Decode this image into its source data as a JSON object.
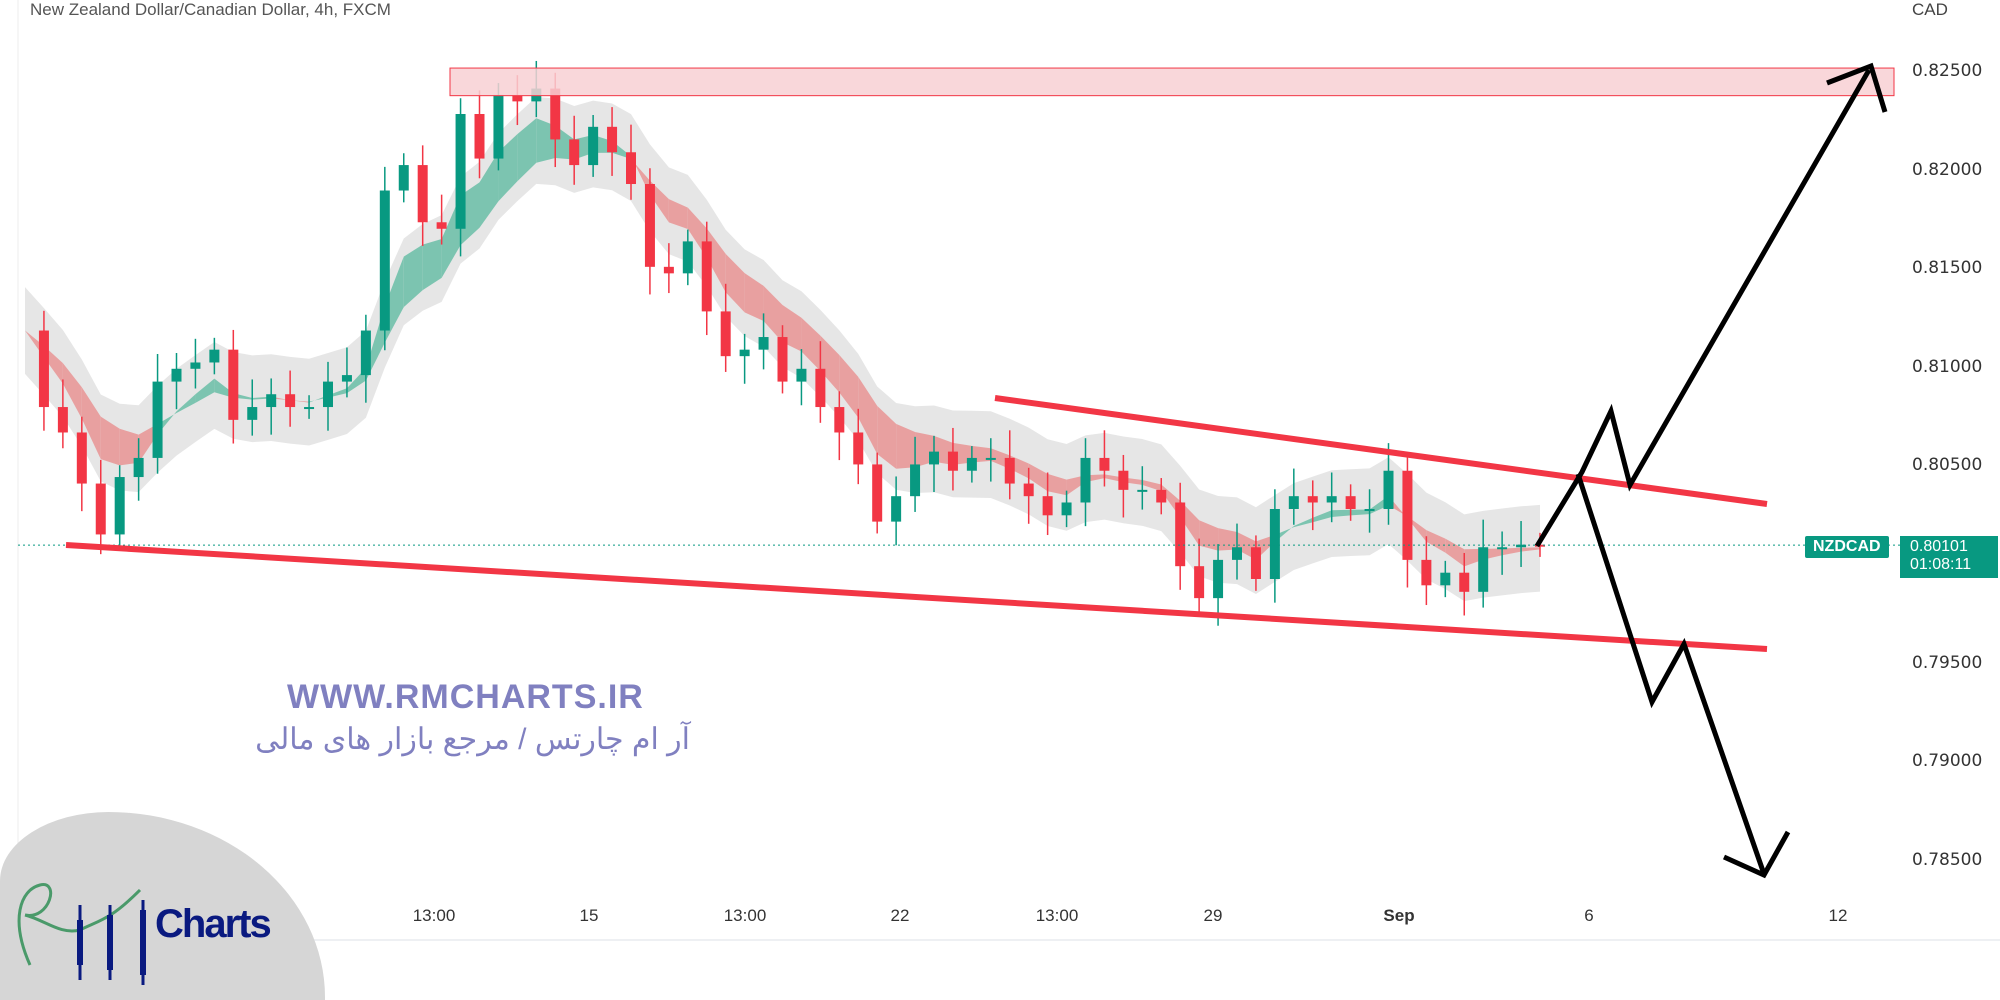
{
  "header": {
    "title": "New Zealand Dollar/Canadian Dollar, 4h, FXCM",
    "currency": "CAD"
  },
  "price_tag": {
    "symbol": "NZDCAD",
    "last": "0.80101",
    "countdown": "01:08:11"
  },
  "watermark": {
    "site": "WWW.RMCHARTS.IR",
    "tagline": "آر ام چارتس / مرجع بازار های مالی",
    "logo_text": "Charts"
  },
  "colors": {
    "up": "#089981",
    "down": "#f23645",
    "zone": "#f8d0d4",
    "channel": "#f23645",
    "projection": "#000000"
  },
  "chart_data": {
    "type": "candlestick",
    "ylim": [
      0.7825,
      0.8265
    ],
    "yticks": [
      "0.82500",
      "0.82000",
      "0.81500",
      "0.81000",
      "0.80500",
      "0.80000",
      "0.79500",
      "0.79000",
      "0.78500"
    ],
    "yticks_shown": [
      "0.82500",
      "0.82000",
      "0.81500",
      "0.81000",
      "0.80500",
      "0.79500",
      "0.79000",
      "0.78500"
    ],
    "xticks": [
      "13:00",
      "15",
      "13:00",
      "22",
      "13:00",
      "29",
      "Sep",
      "6",
      "12"
    ],
    "closes": [
      0.81189,
      0.80801,
      0.80672,
      0.80413,
      0.80155,
      0.80446,
      0.80543,
      0.8093,
      0.80995,
      0.81027,
      0.81092,
      0.80736,
      0.80801,
      0.80866,
      0.80801,
      0.80801,
      0.8093,
      0.80963,
      0.81189,
      0.81899,
      0.82028,
      0.81738,
      0.81705,
      0.82287,
      0.82061,
      0.82384,
      0.82351,
      0.82416,
      0.82158,
      0.82028,
      0.82222,
      0.82093,
      0.81932,
      0.81512,
      0.81479,
      0.81641,
      0.81286,
      0.81059,
      0.81092,
      0.81156,
      0.8093,
      0.80995,
      0.80801,
      0.80672,
      0.8051,
      0.8022,
      0.80349,
      0.8051,
      0.80575,
      0.80478,
      0.80543,
      0.80543,
      0.80413,
      0.80349,
      0.80252,
      0.80317,
      0.80543,
      0.80478,
      0.80381,
      0.80381,
      0.80317,
      0.79994,
      0.79832,
      0.80026,
      0.8009,
      0.79929,
      0.80284,
      0.80349,
      0.80317,
      0.80349,
      0.80284,
      0.80284,
      0.80478,
      0.80026,
      0.79897,
      0.79961,
      0.79864,
      0.8009,
      0.8009,
      0.80103,
      0.80101
    ],
    "resistance_zone": [
      0.8238,
      0.8252
    ],
    "last_price": 0.80101
  }
}
